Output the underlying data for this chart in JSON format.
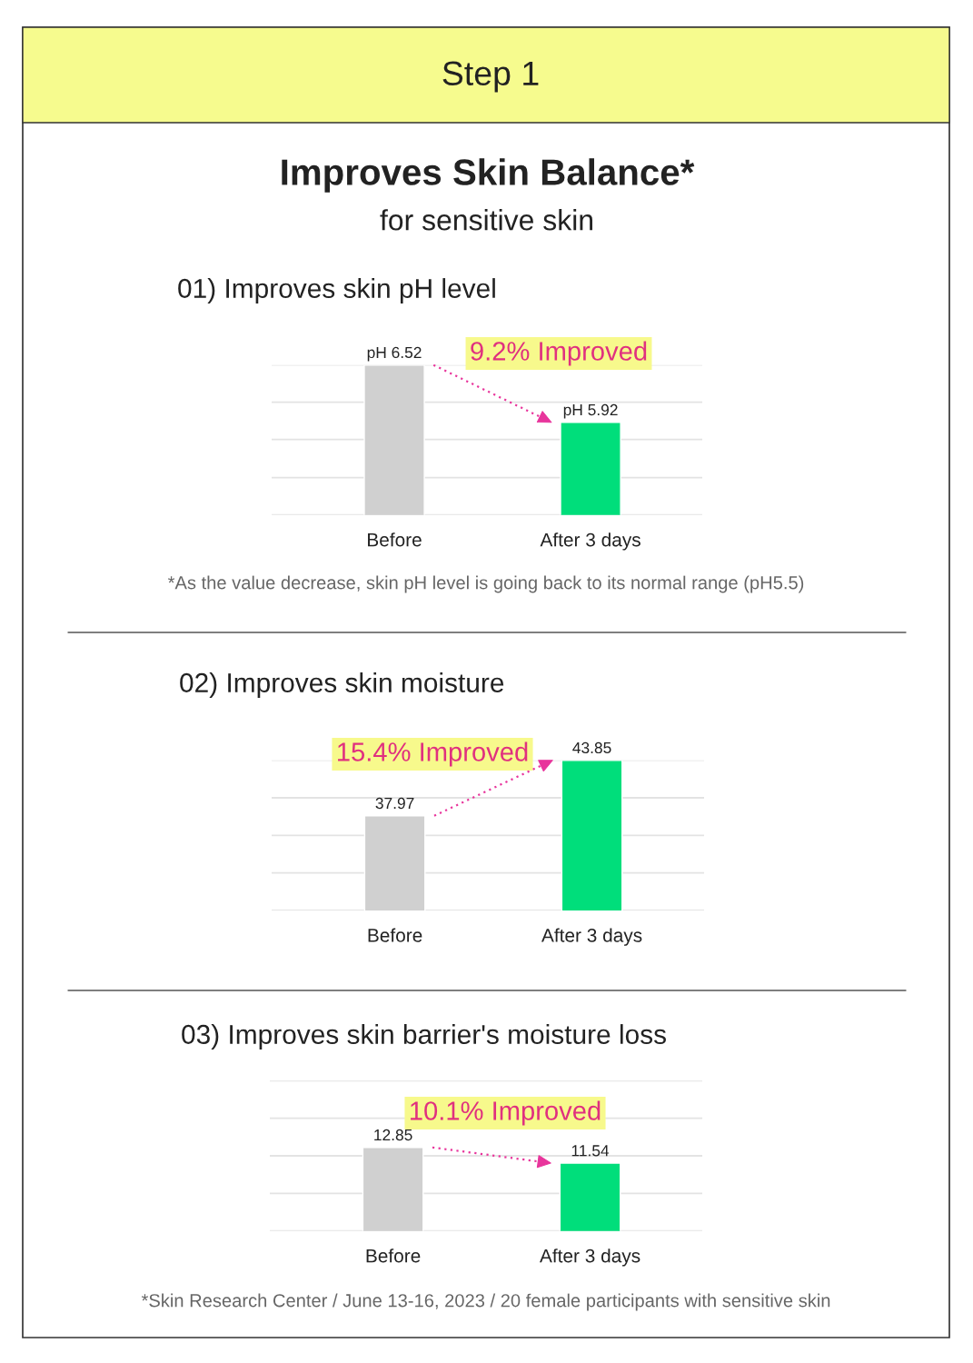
{
  "chart_data": [
    {
      "type": "other",
      "title": "Improves Skin Balance*",
      "subtitle": "for sensitive skin",
      "annotations": [
        "Step 1"
      ]
    },
    {
      "type": "bar",
      "title": "01) Improves skin pH level",
      "categories": [
        "Before",
        "After 3 days"
      ],
      "values": [
        6.52,
        5.92
      ],
      "colors": [
        "#d0d0d0",
        "#00de7b"
      ],
      "value_labels": [
        "pH 6.52",
        "pH 5.92"
      ],
      "ylim": [
        4.95,
        6.52
      ],
      "yticks": [
        {
          "value": 4.95,
          "label": null
        },
        {
          "value": 5.34,
          "label": null
        },
        {
          "value": 5.74,
          "label": null
        },
        {
          "value": 6.13,
          "label": null
        },
        {
          "value": 6.52,
          "label": null
        }
      ],
      "grid": "y",
      "tick_labels": "x",
      "annotations": [
        {
          "text": "9.2% Improved",
          "x": "After 3 days",
          "y": 5.92
        },
        "*As the value decrease, skin pH level is going back to its normal range (pH5.5)"
      ]
    },
    {
      "type": "bar",
      "title": "02) Improves skin moisture",
      "categories": [
        "Before",
        "After 3 days"
      ],
      "values": [
        37.97,
        43.85
      ],
      "colors": [
        "#d0d0d0",
        "#00de7b"
      ],
      "data_labels": true,
      "ylim": [
        27.93,
        43.85
      ],
      "yticks": [
        {
          "value": 27.93,
          "label": null
        },
        {
          "value": 31.91,
          "label": null
        },
        {
          "value": 35.89,
          "label": null
        },
        {
          "value": 39.87,
          "label": null
        },
        {
          "value": 43.85,
          "label": null
        }
      ],
      "grid": "y",
      "tick_labels": "x",
      "annotations": [
        {
          "text": "15.4% Improved",
          "x": "After 3 days",
          "y": 43.85
        }
      ]
    },
    {
      "type": "bar",
      "title": "03) Improves skin barrier's moisture loss",
      "categories": [
        "Before",
        "After 3 days"
      ],
      "values": [
        12.85,
        11.54
      ],
      "colors": [
        "#d0d0d0",
        "#00de7b"
      ],
      "data_labels": true,
      "ylim": [
        5.89,
        18.41
      ],
      "yticks": [
        {
          "value": 5.89,
          "label": null
        },
        {
          "value": 9.02,
          "label": null
        },
        {
          "value": 12.15,
          "label": null
        },
        {
          "value": 15.28,
          "label": null
        },
        {
          "value": 18.41,
          "label": null
        }
      ],
      "grid": "y",
      "tick_labels": "x",
      "annotations": [
        {
          "text": "10.1% Improved",
          "x": "After 3 days",
          "y": 11.54
        },
        "*Skin Research Center / June 13-16, 2023 / 20 female participants with sensitive skin"
      ]
    }
  ]
}
